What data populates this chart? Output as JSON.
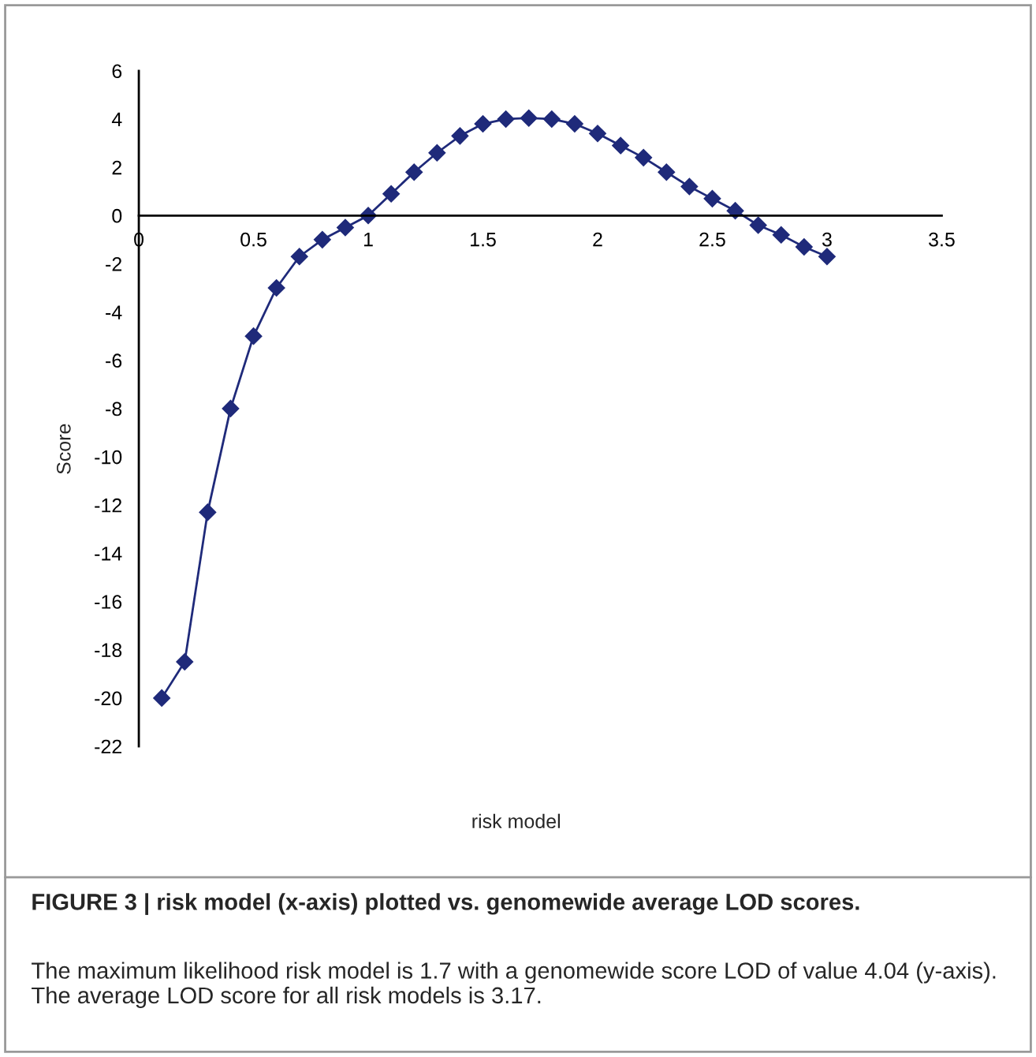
{
  "chart_data": {
    "type": "line",
    "xlabel": "risk model",
    "ylabel": "Score",
    "title": "FIGURE 3 | risk model (x-axis) plotted vs. genomewide average LOD scores.",
    "annotations": [
      "The maximum likelihood risk model is 1.7 with a genomewide score LOD of value 4.04 (y-axis). The average LOD score for all risk models is 3.17."
    ],
    "x": [
      0.1,
      0.2,
      0.3,
      0.4,
      0.5,
      0.6,
      0.7,
      0.8,
      0.9,
      1.0,
      1.1,
      1.2,
      1.3,
      1.4,
      1.5,
      1.6,
      1.7,
      1.8,
      1.9,
      2.0,
      2.1,
      2.2,
      2.3,
      2.4,
      2.5,
      2.6,
      2.7,
      2.8,
      2.9,
      3.0
    ],
    "series": [
      {
        "color": "#1f2a7a",
        "values": [
          -20,
          -18.5,
          -12.3,
          -8,
          -5,
          -3,
          -1.7,
          -1,
          -0.5,
          0,
          0.9,
          1.8,
          2.6,
          3.3,
          3.8,
          4.0,
          4.04,
          4.0,
          3.8,
          3.4,
          2.9,
          2.4,
          1.8,
          1.2,
          0.7,
          0.2,
          -0.4,
          -0.8,
          -1.3,
          -1.7
        ]
      }
    ],
    "marker": "diamond",
    "line_style": "solid",
    "grid": false,
    "legend": false,
    "xlim": [
      0,
      3.5
    ],
    "xticks": [
      0,
      0.5,
      1,
      1.5,
      2,
      2.5,
      3,
      3.5
    ],
    "ylim": [
      -22,
      6
    ],
    "yticks": [
      -22,
      -20,
      -18,
      -16,
      -14,
      -12,
      -10,
      -8,
      -6,
      -4,
      -2,
      0,
      2,
      4,
      6
    ]
  }
}
